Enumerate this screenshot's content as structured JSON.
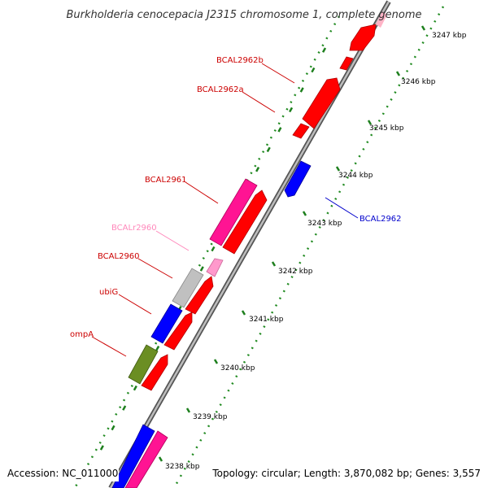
{
  "title": "Burkholderia cenocepacia J2315 chromosome 1, complete genome",
  "footer": {
    "accession": "Accession: NC_011000",
    "summary": "Topology: circular; Length: 3,870,082 bp; Genes: 3,557"
  },
  "colors": {
    "cds_red": "#ff0000",
    "cds_blue": "#0000ff",
    "cds_magenta": "#ff1493",
    "pink": "#ff99cc",
    "grey": "#c0c0c0",
    "olive": "#6b8e23",
    "tick_green": "#228b22",
    "axis": "#808080",
    "label_red": "#cc0000",
    "label_blue": "#0000cc",
    "label_pink": "#ff88bb"
  },
  "kbp_labels": [
    "3247 kbp",
    "3246 kbp",
    "3245 kbp",
    "3244 kbp",
    "3243 kbp",
    "3242 kbp",
    "3241 kbp",
    "3240 kbp",
    "3239 kbp",
    "3238 kbp"
  ],
  "gene_labels": [
    {
      "name": "BCAL2962b",
      "color": "label_red"
    },
    {
      "name": "BCAL2962a",
      "color": "label_red"
    },
    {
      "name": "BCAL2961",
      "color": "label_red"
    },
    {
      "name": "BCALr2960",
      "color": "label_pink"
    },
    {
      "name": "BCAL2960",
      "color": "label_red"
    },
    {
      "name": "ubiG",
      "color": "label_red"
    },
    {
      "name": "ompA",
      "color": "label_red"
    },
    {
      "name": "BCAL2962",
      "color": "label_blue"
    }
  ]
}
